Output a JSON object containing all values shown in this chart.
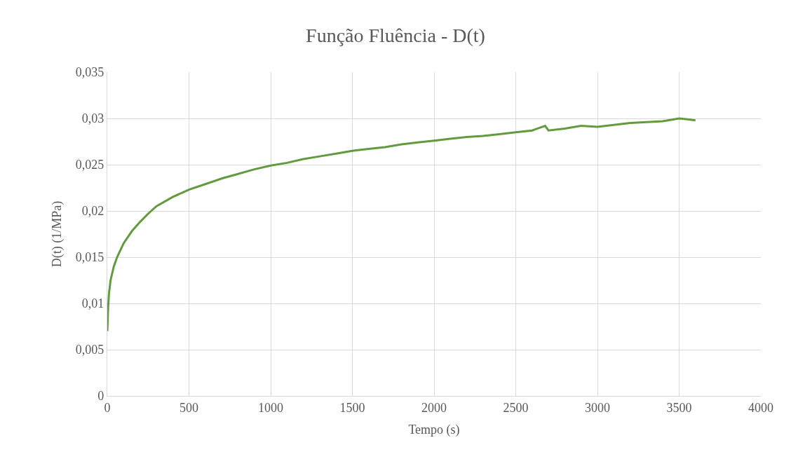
{
  "chart_data": {
    "type": "line",
    "title": "Função Fluência - D(t)",
    "xlabel": "Tempo (s)",
    "ylabel": "D(t) (1/MPa)",
    "x": [
      0,
      5,
      10,
      20,
      40,
      60,
      100,
      150,
      200,
      250,
      300,
      400,
      500,
      600,
      700,
      800,
      900,
      1000,
      1100,
      1200,
      1300,
      1400,
      1500,
      1600,
      1700,
      1800,
      1900,
      2000,
      2100,
      2200,
      2300,
      2400,
      2500,
      2600,
      2680,
      2700,
      2800,
      2900,
      3000,
      3100,
      3200,
      3300,
      3400,
      3500,
      3550,
      3600
    ],
    "series": [
      {
        "color": "#629b3e",
        "values": [
          0.007,
          0.0095,
          0.011,
          0.0125,
          0.014,
          0.015,
          0.0165,
          0.0178,
          0.0188,
          0.0197,
          0.0205,
          0.0215,
          0.0223,
          0.0229,
          0.0235,
          0.024,
          0.0245,
          0.0249,
          0.0252,
          0.0256,
          0.0259,
          0.0262,
          0.0265,
          0.0267,
          0.0269,
          0.0272,
          0.0274,
          0.0276,
          0.0278,
          0.028,
          0.0281,
          0.0283,
          0.0285,
          0.0287,
          0.0292,
          0.0287,
          0.0289,
          0.0292,
          0.0291,
          0.0293,
          0.0295,
          0.0296,
          0.0297,
          0.03,
          0.0299,
          0.0298
        ]
      }
    ],
    "xlim": [
      0,
      4000
    ],
    "xticks": [
      0,
      500,
      1000,
      1500,
      2000,
      2500,
      3000,
      3500,
      4000
    ],
    "ylim": [
      0,
      0.035
    ],
    "yticks": [
      0,
      {
        "value": 0.005,
        "label": "0,005"
      },
      {
        "value": 0.01,
        "label": "0,01"
      },
      {
        "value": 0.015,
        "label": "0,015"
      },
      {
        "value": 0.02,
        "label": "0,02"
      },
      {
        "value": 0.025,
        "label": "0,025"
      },
      {
        "value": 0.03,
        "label": "0,03"
      },
      {
        "value": 0.035,
        "label": "0,035"
      }
    ],
    "grid": true,
    "marker": "none",
    "line_style": "solid"
  }
}
